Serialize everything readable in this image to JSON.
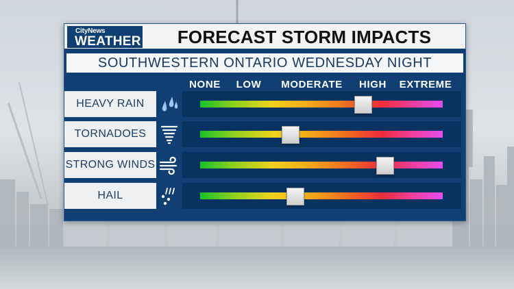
{
  "brand": {
    "small": "CityNews",
    "big": "WEATHER"
  },
  "title": "FORECAST STORM IMPACTS",
  "subtitle": "SOUTHWESTERN ONTARIO WEDNESDAY NIGHT",
  "scale_labels": [
    "NONE",
    "LOW",
    "MODERATE",
    "HIGH",
    "EXTREME"
  ],
  "rows": [
    {
      "label": "HEAVY RAIN",
      "icon": "rain-drops-icon",
      "level": 0.67
    },
    {
      "label": "TORNADOES",
      "icon": "tornado-icon",
      "level": 0.37
    },
    {
      "label": "STRONG WINDS",
      "icon": "wind-icon",
      "level": 0.76
    },
    {
      "label": "HAIL",
      "icon": "hail-icon",
      "level": 0.39
    }
  ],
  "colors": {
    "panel": "#0f3f73",
    "track": "#08325f",
    "scale_gradient": [
      "#18c02a",
      "#f0d21c",
      "#f06f1e",
      "#ee2c3a",
      "#e64df0"
    ]
  }
}
